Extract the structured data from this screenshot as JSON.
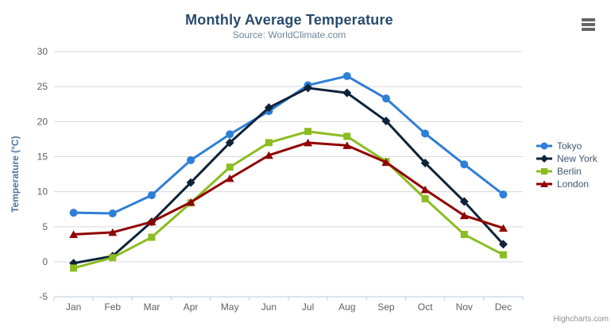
{
  "header": {
    "title": "Monthly Average Temperature",
    "subtitle": "Source: WorldClimate.com"
  },
  "credits": "Highcharts.com",
  "colors": {
    "title": "#274b6d",
    "subtitle": "#6d869f",
    "axis_title": "#4d759e",
    "axis_labels": "#606060",
    "gridline": "#d8d8d8",
    "axis_line": "#c0d0e0",
    "legend_text": "#3e576f",
    "menu_icon": "#666666"
  },
  "chart_data": {
    "type": "line",
    "title": "Monthly Average Temperature",
    "subtitle": "Source: WorldClimate.com",
    "xlabel": "",
    "ylabel": "Temperature (°C)",
    "categories": [
      "Jan",
      "Feb",
      "Mar",
      "Apr",
      "May",
      "Jun",
      "Jul",
      "Aug",
      "Sep",
      "Oct",
      "Nov",
      "Dec"
    ],
    "series": [
      {
        "name": "Tokyo",
        "color": "#2f7ed8",
        "marker": "circle",
        "values": [
          7.0,
          6.9,
          9.5,
          14.5,
          18.2,
          21.5,
          25.2,
          26.5,
          23.3,
          18.3,
          13.9,
          9.6
        ]
      },
      {
        "name": "New York",
        "color": "#0d233a",
        "marker": "diamond",
        "values": [
          -0.2,
          0.8,
          5.7,
          11.3,
          17.0,
          22.0,
          24.8,
          24.1,
          20.1,
          14.1,
          8.6,
          2.5
        ]
      },
      {
        "name": "Berlin",
        "color": "#8bbc21",
        "marker": "square",
        "values": [
          -0.9,
          0.6,
          3.5,
          8.4,
          13.5,
          17.0,
          18.6,
          17.9,
          14.3,
          9.0,
          3.9,
          1.0
        ]
      },
      {
        "name": "London",
        "color": "#910000",
        "marker": "triangle",
        "values": [
          3.9,
          4.2,
          5.7,
          8.5,
          11.9,
          15.2,
          17.0,
          16.6,
          14.2,
          10.3,
          6.6,
          4.8
        ]
      }
    ],
    "ylim": [
      -5,
      30
    ],
    "y_ticks": [
      -5,
      0,
      5,
      10,
      15,
      20,
      25,
      30
    ],
    "grid": true,
    "legend_position": "right"
  }
}
